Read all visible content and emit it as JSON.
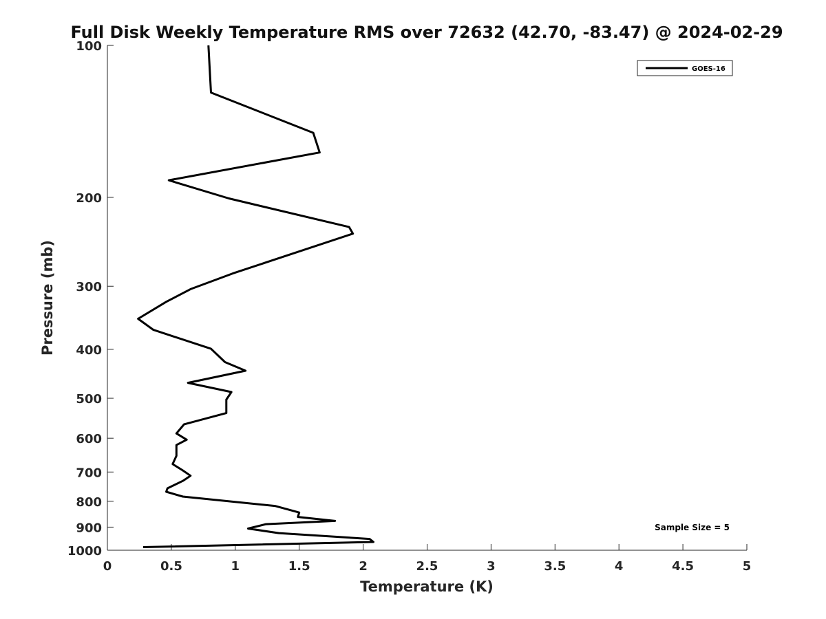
{
  "chart_data": {
    "type": "line",
    "title": "Full Disk Weekly Temperature RMS over 72632 (42.70, -83.47) @ 2024-02-29",
    "xlabel": "Temperature (K)",
    "ylabel": "Pressure (mb)",
    "xlim": [
      0,
      5
    ],
    "ylim": [
      100,
      1000
    ],
    "y_scale": "log",
    "y_reversed": true,
    "x_ticks": [
      "0",
      "0.5",
      "1",
      "1.5",
      "2",
      "2.5",
      "3",
      "3.5",
      "4",
      "4.5",
      "5"
    ],
    "x_tick_values": [
      0,
      0.5,
      1,
      1.5,
      2,
      2.5,
      3,
      3.5,
      4,
      4.5,
      5
    ],
    "y_ticks": [
      "100",
      "200",
      "300",
      "400",
      "500",
      "600",
      "700",
      "800",
      "900",
      "1000"
    ],
    "y_tick_values": [
      100,
      200,
      300,
      400,
      500,
      600,
      700,
      800,
      900,
      1000
    ],
    "legend": {
      "position": "top-right",
      "entries": [
        "GOES-16"
      ]
    },
    "annotation": "Sample Size = 5",
    "series": [
      {
        "name": "GOES-16",
        "color": "#000000",
        "x": [
          0.79,
          0.81,
          1.61,
          1.66,
          0.48,
          0.95,
          1.89,
          1.92,
          0.98,
          0.65,
          0.46,
          0.24,
          0.36,
          0.81,
          0.92,
          1.08,
          0.63,
          0.97,
          0.93,
          0.93,
          0.6,
          0.54,
          0.62,
          0.54,
          0.54,
          0.51,
          0.59,
          0.65,
          0.59,
          0.47,
          0.46,
          0.59,
          1.31,
          1.5,
          1.49,
          1.78,
          1.24,
          1.1,
          1.34,
          2.05,
          2.08,
          0.28
        ],
        "y": [
          100,
          124,
          149,
          163,
          185,
          201,
          229,
          236,
          283,
          304,
          322,
          348,
          366,
          399,
          424,
          441,
          466,
          486,
          503,
          535,
          563,
          587,
          604,
          619,
          650,
          675,
          695,
          712,
          729,
          754,
          766,
          783,
          817,
          842,
          859,
          875,
          888,
          906,
          925,
          950,
          963,
          986
        ]
      }
    ]
  }
}
